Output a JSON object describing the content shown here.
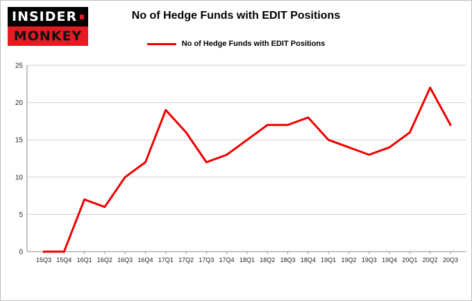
{
  "logo": {
    "line1": "INSIDER",
    "line2": "MONKEY"
  },
  "title": "No of Hedge Funds with EDIT Positions",
  "legend": {
    "label": "No of Hedge Funds with EDIT Positions"
  },
  "colors": {
    "line": "#ee0000",
    "logo_red": "#e31b23",
    "logo_black": "#000000",
    "gridline": "#cfcfcf",
    "axis": "#888888"
  },
  "chart_data": {
    "type": "line",
    "title": "No of Hedge Funds with EDIT Positions",
    "categories": [
      "15Q3",
      "15Q4",
      "16Q1",
      "16Q2",
      "16Q3",
      "16Q4",
      "17Q1",
      "17Q2",
      "17Q3",
      "17Q4",
      "18Q1",
      "18Q2",
      "18Q3",
      "18Q4",
      "19Q1",
      "19Q2",
      "19Q3",
      "19Q4",
      "20Q1",
      "20Q2",
      "20Q3"
    ],
    "series": [
      {
        "name": "No of Hedge Funds with EDIT Positions",
        "color": "#ee0000",
        "values": [
          0,
          0,
          7,
          6,
          10,
          12,
          19,
          16,
          12,
          13,
          15,
          17,
          17,
          18,
          15,
          14,
          13,
          14,
          16,
          22,
          17
        ]
      }
    ],
    "xlabel": "",
    "ylabel": "",
    "ylim": [
      0,
      25
    ],
    "yticks": [
      0,
      5,
      10,
      15,
      20,
      25
    ],
    "grid": true,
    "legend_position": "top"
  }
}
